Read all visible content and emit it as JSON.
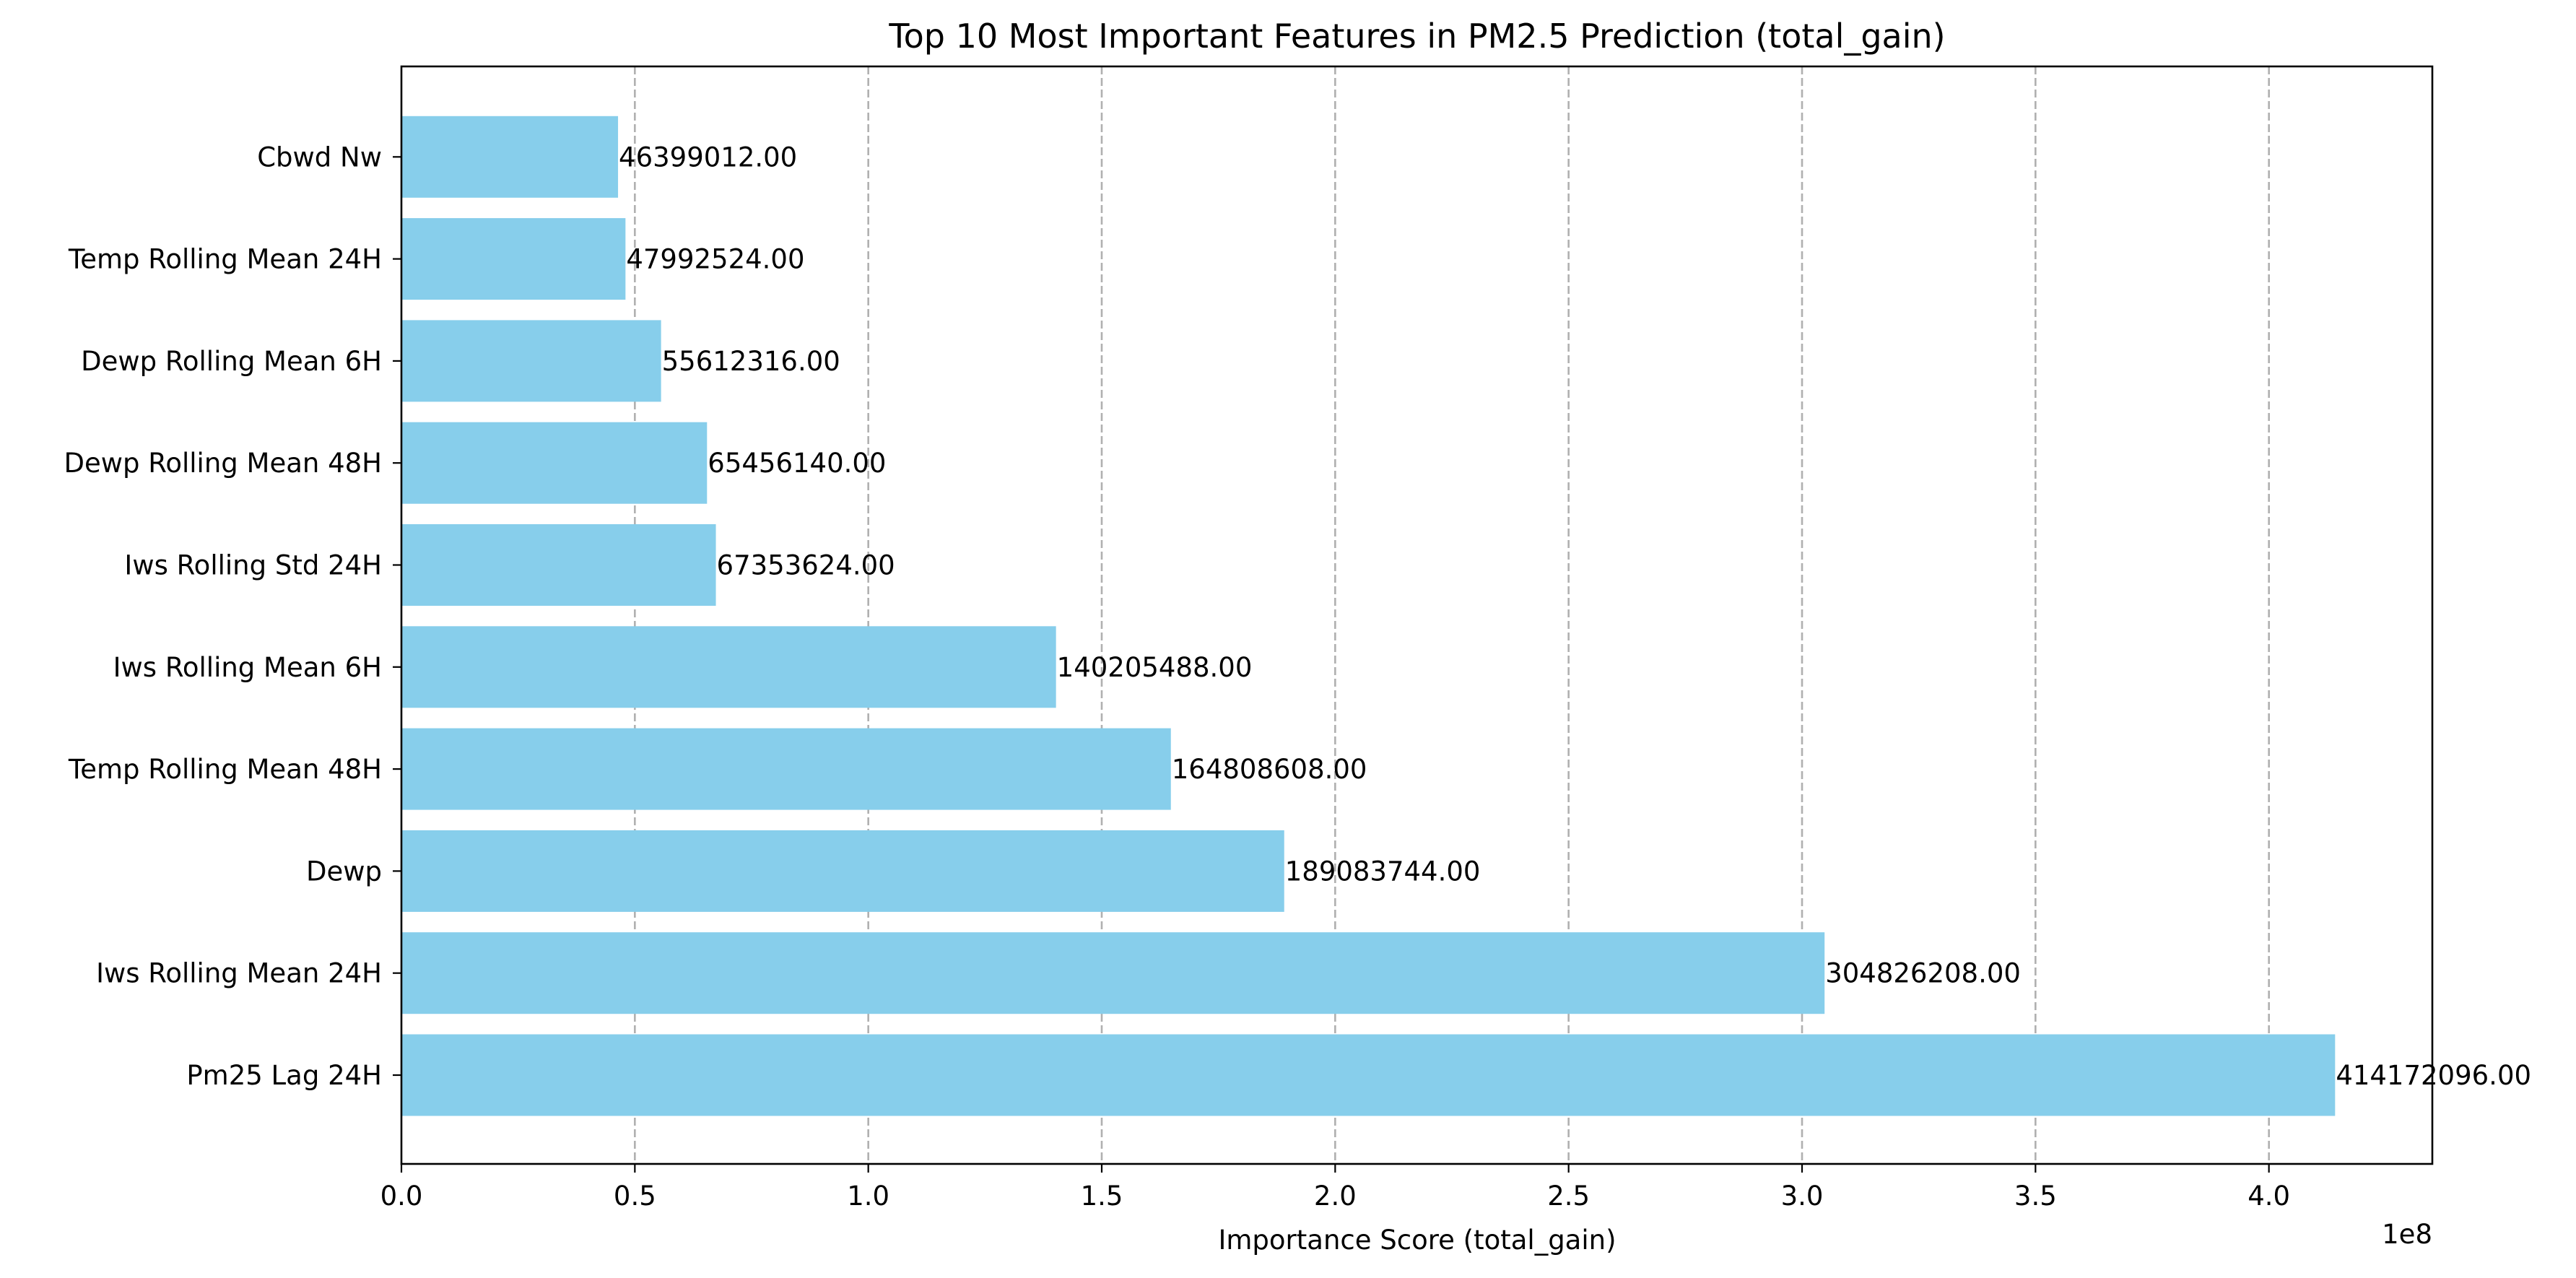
{
  "chart_data": {
    "type": "bar",
    "orientation": "horizontal",
    "title": "Top 10 Most Important Features in PM2.5 Prediction (total_gain)",
    "xlabel": "Importance Score (total_gain)",
    "ylabel": "",
    "x_offset_text": "1e8",
    "x_scale_factor": 100000000,
    "xlim": [
      0,
      435000000
    ],
    "xticks": [
      0,
      50000000,
      100000000,
      150000000,
      200000000,
      250000000,
      300000000,
      350000000,
      400000000
    ],
    "xtick_labels": [
      "0.0",
      "0.5",
      "1.0",
      "1.5",
      "2.0",
      "2.5",
      "3.0",
      "3.5",
      "4.0"
    ],
    "grid": "x",
    "bar_color": "#87ceeb",
    "categories": [
      "Pm25 Lag 24H",
      "Iws Rolling Mean 24H",
      "Dewp",
      "Temp Rolling Mean 48H",
      "Iws Rolling Mean 6H",
      "Iws Rolling Std 24H",
      "Dewp Rolling Mean 48H",
      "Dewp Rolling Mean 6H",
      "Temp Rolling Mean 24H",
      "Cbwd Nw"
    ],
    "values": [
      414172096,
      304826208,
      189083744,
      164808608,
      140205488,
      67353624,
      65456140,
      55612316,
      47992524,
      46399012
    ],
    "value_labels": [
      "414172096.00",
      "304826208.00",
      "189083744.00",
      "164808608.00",
      "140205488.00",
      "67353624.00",
      "65456140.00",
      "55612316.00",
      "47992524.00",
      "46399012.00"
    ]
  }
}
